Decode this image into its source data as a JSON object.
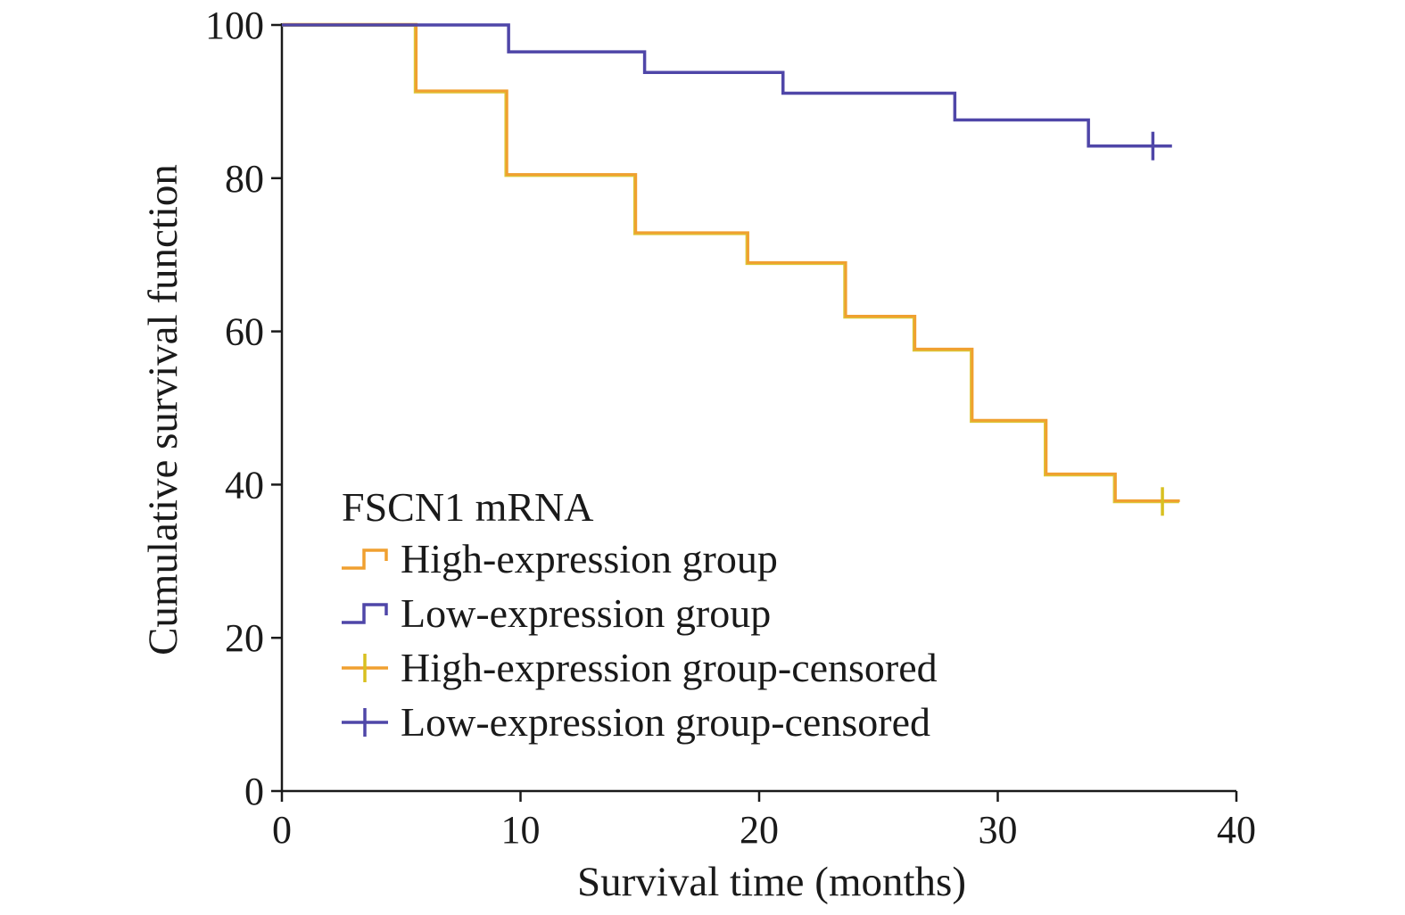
{
  "chart_data": {
    "type": "line",
    "subtype": "kaplan-meier-step",
    "xlabel": "Survival time (months)",
    "ylabel": "Cumulative survival function",
    "xlim": [
      0,
      40
    ],
    "ylim": [
      0,
      100
    ],
    "xticks": [
      "0",
      "10",
      "20",
      "30",
      "40"
    ],
    "yticks": [
      "0",
      "20",
      "40",
      "60",
      "80",
      "100"
    ],
    "grid": false,
    "legend": {
      "title": "FSCN1 mRNA",
      "placement": "lower-left",
      "entries": [
        {
          "label": "High-expression group",
          "marker": "step",
          "series": 0
        },
        {
          "label": "Low-expression group",
          "marker": "step",
          "series": 1
        },
        {
          "label": "High-expression group-censored",
          "marker": "censor",
          "series": 0
        },
        {
          "label": "Low-expression group-censored",
          "marker": "censor",
          "series": 1
        }
      ]
    },
    "series": [
      {
        "color": "#f0a030",
        "color_alt": "#d8c020",
        "steps": [
          [
            0,
            100
          ],
          [
            5.6,
            91.3
          ],
          [
            9.4,
            80.4
          ],
          [
            14.8,
            72.8
          ],
          [
            19.5,
            68.9
          ],
          [
            23.6,
            61.9
          ],
          [
            26.5,
            57.6
          ],
          [
            28.9,
            48.3
          ],
          [
            32.0,
            41.3
          ],
          [
            34.9,
            37.8
          ]
        ],
        "end_x": 37.6,
        "censored": [
          [
            36.9,
            37.8
          ]
        ]
      },
      {
        "color": "#4f46a8",
        "steps": [
          [
            0,
            100
          ],
          [
            9.5,
            96.5
          ],
          [
            15.2,
            93.8
          ],
          [
            21.0,
            91.1
          ],
          [
            28.2,
            87.6
          ],
          [
            33.8,
            84.2
          ]
        ],
        "end_x": 37.3,
        "censored": [
          [
            36.5,
            84.2
          ]
        ]
      }
    ]
  }
}
